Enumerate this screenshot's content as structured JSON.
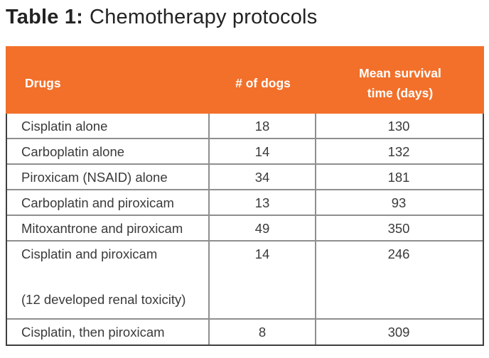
{
  "title": {
    "label": "Table 1:",
    "text": "Chemotherapy protocols"
  },
  "table": {
    "columns": [
      {
        "label": "Drugs"
      },
      {
        "label": "# of dogs"
      },
      {
        "label": "Mean survival time (days)"
      }
    ],
    "rows": [
      {
        "drug": "Cisplatin alone",
        "dogs": "18",
        "survival": "130"
      },
      {
        "drug": "Carboplatin alone",
        "dogs": "14",
        "survival": "132"
      },
      {
        "drug": "Piroxicam (NSAID) alone",
        "dogs": "34",
        "survival": "181"
      },
      {
        "drug": "Carboplatin and piroxicam",
        "dogs": "13",
        "survival": "93"
      },
      {
        "drug": "Mitoxantrone and piroxicam",
        "dogs": "49",
        "survival": "350"
      },
      {
        "drug": "Cisplatin and piroxicam",
        "note": "(12 developed renal toxicity)",
        "dogs": "14",
        "survival": "246"
      },
      {
        "drug": "Cisplatin, then piroxicam",
        "dogs": "8",
        "survival": "309"
      }
    ],
    "colors": {
      "header_bg": "#F2702A",
      "header_text": "#FFFFFF",
      "border_outer": "#3F3F3F",
      "border_inner": "#8F8F8F",
      "body_text": "#3A3A3A"
    }
  }
}
